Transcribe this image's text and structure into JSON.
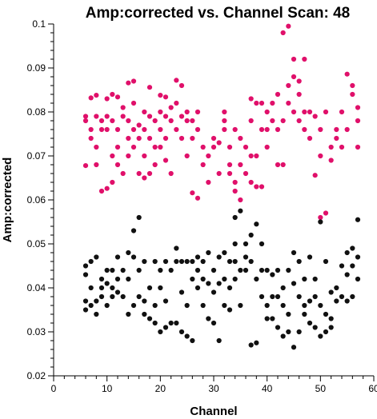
{
  "chart_data": {
    "type": "scatter",
    "title": "Amp:corrected vs. Channel Scan: 48",
    "xlabel": "Channel",
    "ylabel": "Amp:corrected",
    "xlim": [
      0,
      60
    ],
    "ylim": [
      0.02,
      0.1
    ],
    "xticks": [
      "0",
      "10",
      "20",
      "30",
      "40",
      "50",
      "60"
    ],
    "yticks": [
      "0.02",
      "0.03",
      "0.04",
      "0.05",
      "0.06",
      "0.07",
      "0.08",
      "0.09",
      "0.1"
    ],
    "grid": false,
    "legend": "none",
    "series": [
      {
        "color": "#e0106a",
        "points": [
          [
            6,
            0.079
          ],
          [
            6,
            0.078
          ],
          [
            6,
            0.0678
          ],
          [
            7,
            0.076
          ],
          [
            7,
            0.0832
          ],
          [
            7,
            0.074
          ],
          [
            8,
            0.0838
          ],
          [
            8,
            0.079
          ],
          [
            8,
            0.072
          ],
          [
            8,
            0.068
          ],
          [
            9,
            0.078
          ],
          [
            9,
            0.076
          ],
          [
            9,
            0.062
          ],
          [
            10,
            0.083
          ],
          [
            10,
            0.079
          ],
          [
            10,
            0.076
          ],
          [
            10,
            0.0626
          ],
          [
            11,
            0.084
          ],
          [
            11,
            0.078
          ],
          [
            11,
            0.07
          ],
          [
            11,
            0.064
          ],
          [
            12,
            0.0834
          ],
          [
            12,
            0.076
          ],
          [
            12,
            0.072
          ],
          [
            12,
            0.068
          ],
          [
            13,
            0.081
          ],
          [
            13,
            0.079
          ],
          [
            13,
            0.066
          ],
          [
            14,
            0.0866
          ],
          [
            14,
            0.078
          ],
          [
            14,
            0.074
          ],
          [
            14,
            0.07
          ],
          [
            15,
            0.087
          ],
          [
            15,
            0.082
          ],
          [
            15,
            0.076
          ],
          [
            15,
            0.072
          ],
          [
            16,
            0.077
          ],
          [
            16,
            0.074
          ],
          [
            16,
            0.066
          ],
          [
            17,
            0.08
          ],
          [
            17,
            0.076
          ],
          [
            17,
            0.07
          ],
          [
            17,
            0.065
          ],
          [
            18,
            0.0856
          ],
          [
            18,
            0.079
          ],
          [
            18,
            0.074
          ],
          [
            18,
            0.066
          ],
          [
            19,
            0.078
          ],
          [
            19,
            0.072
          ],
          [
            19,
            0.068
          ],
          [
            20,
            0.0838
          ],
          [
            20,
            0.08
          ],
          [
            20,
            0.076
          ],
          [
            20,
            0.072
          ],
          [
            21,
            0.0834
          ],
          [
            21,
            0.079
          ],
          [
            21,
            0.074
          ],
          [
            21,
            0.069
          ],
          [
            22,
            0.081
          ],
          [
            22,
            0.078
          ],
          [
            22,
            0.066
          ],
          [
            23,
            0.0872
          ],
          [
            23,
            0.082
          ],
          [
            23,
            0.076
          ],
          [
            24,
            0.086
          ],
          [
            24,
            0.079
          ],
          [
            24,
            0.074
          ],
          [
            25,
            0.08
          ],
          [
            25,
            0.078
          ],
          [
            25,
            0.07
          ],
          [
            26,
            0.078
          ],
          [
            26,
            0.074
          ],
          [
            26,
            0.0616
          ],
          [
            27,
            0.08
          ],
          [
            27,
            0.076
          ],
          [
            27,
            0.0604
          ],
          [
            28,
            0.072
          ],
          [
            28,
            0.068
          ],
          [
            29,
            0.07
          ],
          [
            29,
            0.064
          ],
          [
            30,
            0.074
          ],
          [
            30,
            0.072
          ],
          [
            31,
            0.073
          ],
          [
            31,
            0.066
          ],
          [
            32,
            0.08
          ],
          [
            32,
            0.078
          ],
          [
            32,
            0.076
          ],
          [
            33,
            0.072
          ],
          [
            33,
            0.068
          ],
          [
            33,
            0.066
          ],
          [
            34,
            0.076
          ],
          [
            34,
            0.064
          ],
          [
            34,
            0.062
          ],
          [
            35,
            0.074
          ],
          [
            35,
            0.068
          ],
          [
            35,
            0.06
          ],
          [
            36,
            0.072
          ],
          [
            36,
            0.066
          ],
          [
            37,
            0.083
          ],
          [
            37,
            0.078
          ],
          [
            37,
            0.07
          ],
          [
            37,
            0.064
          ],
          [
            38,
            0.082
          ],
          [
            38,
            0.07
          ],
          [
            38,
            0.063
          ],
          [
            39,
            0.082
          ],
          [
            39,
            0.076
          ],
          [
            39,
            0.063
          ],
          [
            40,
            0.08
          ],
          [
            40,
            0.076
          ],
          [
            40,
            0.072
          ],
          [
            41,
            0.082
          ],
          [
            41,
            0.078
          ],
          [
            42,
            0.084
          ],
          [
            42,
            0.076
          ],
          [
            42,
            0.068
          ],
          [
            43,
            0.098
          ],
          [
            43,
            0.078
          ],
          [
            43,
            0.068
          ],
          [
            44,
            0.0995
          ],
          [
            44,
            0.086
          ],
          [
            44,
            0.082
          ],
          [
            45,
            0.092
          ],
          [
            45,
            0.088
          ],
          [
            45,
            0.08
          ],
          [
            46,
            0.087
          ],
          [
            46,
            0.084
          ],
          [
            46,
            0.078
          ],
          [
            47,
            0.092
          ],
          [
            47,
            0.08
          ],
          [
            47,
            0.076
          ],
          [
            48,
            0.08
          ],
          [
            48,
            0.074
          ],
          [
            49,
            0.079
          ],
          [
            49,
            0.0656
          ],
          [
            50,
            0.076
          ],
          [
            50,
            0.07
          ],
          [
            50,
            0.056
          ],
          [
            51,
            0.08
          ],
          [
            51,
            0.057
          ],
          [
            52,
            0.072
          ],
          [
            52,
            0.069
          ],
          [
            53,
            0.076
          ],
          [
            53,
            0.074
          ],
          [
            54,
            0.08
          ],
          [
            54,
            0.072
          ],
          [
            55,
            0.0886
          ],
          [
            55,
            0.076
          ],
          [
            56,
            0.086
          ],
          [
            56,
            0.084
          ],
          [
            57,
            0.081
          ],
          [
            57,
            0.078
          ],
          [
            57,
            0.072
          ]
        ]
      },
      {
        "color": "#111111",
        "points": [
          [
            6,
            0.045
          ],
          [
            6,
            0.043
          ],
          [
            6,
            0.037
          ],
          [
            6,
            0.035
          ],
          [
            7,
            0.046
          ],
          [
            7,
            0.04
          ],
          [
            7,
            0.036
          ],
          [
            8,
            0.047
          ],
          [
            8,
            0.037
          ],
          [
            8,
            0.034
          ],
          [
            9,
            0.042
          ],
          [
            9,
            0.04
          ],
          [
            9,
            0.038
          ],
          [
            10,
            0.044
          ],
          [
            10,
            0.041
          ],
          [
            10,
            0.036
          ],
          [
            11,
            0.044
          ],
          [
            11,
            0.04
          ],
          [
            11,
            0.038
          ],
          [
            12,
            0.047
          ],
          [
            12,
            0.042
          ],
          [
            12,
            0.039
          ],
          [
            13,
            0.044
          ],
          [
            13,
            0.038
          ],
          [
            14,
            0.048
          ],
          [
            14,
            0.042
          ],
          [
            14,
            0.034
          ],
          [
            15,
            0.053
          ],
          [
            15,
            0.047
          ],
          [
            15,
            0.036
          ],
          [
            16,
            0.056
          ],
          [
            16,
            0.044
          ],
          [
            16,
            0.038
          ],
          [
            17,
            0.046
          ],
          [
            17,
            0.037
          ],
          [
            17,
            0.034
          ],
          [
            18,
            0.04
          ],
          [
            18,
            0.033
          ],
          [
            19,
            0.046
          ],
          [
            19,
            0.036
          ],
          [
            19,
            0.032
          ],
          [
            20,
            0.044
          ],
          [
            20,
            0.04
          ],
          [
            20,
            0.03
          ],
          [
            21,
            0.046
          ],
          [
            21,
            0.037
          ],
          [
            21,
            0.031
          ],
          [
            22,
            0.044
          ],
          [
            22,
            0.032
          ],
          [
            23,
            0.049
          ],
          [
            23,
            0.046
          ],
          [
            23,
            0.032
          ],
          [
            24,
            0.046
          ],
          [
            24,
            0.039
          ],
          [
            24,
            0.03
          ],
          [
            25,
            0.046
          ],
          [
            25,
            0.036
          ],
          [
            25,
            0.029
          ],
          [
            26,
            0.046
          ],
          [
            26,
            0.042
          ],
          [
            26,
            0.028
          ],
          [
            27,
            0.047
          ],
          [
            27,
            0.044
          ],
          [
            27,
            0.04
          ],
          [
            28,
            0.046
          ],
          [
            28,
            0.042
          ],
          [
            28,
            0.036
          ],
          [
            29,
            0.048
          ],
          [
            29,
            0.041
          ],
          [
            29,
            0.033
          ],
          [
            30,
            0.044
          ],
          [
            30,
            0.039
          ],
          [
            30,
            0.032
          ],
          [
            31,
            0.047
          ],
          [
            31,
            0.041
          ],
          [
            31,
            0.028
          ],
          [
            32,
            0.048
          ],
          [
            32,
            0.042
          ],
          [
            32,
            0.036
          ],
          [
            33,
            0.046
          ],
          [
            33,
            0.04
          ],
          [
            33,
            0.035
          ],
          [
            34,
            0.05
          ],
          [
            34,
            0.046
          ],
          [
            34,
            0.042
          ],
          [
            34,
            0.056
          ],
          [
            35,
            0.0575
          ],
          [
            35,
            0.044
          ],
          [
            35,
            0.036
          ],
          [
            36,
            0.05
          ],
          [
            36,
            0.047
          ],
          [
            36,
            0.044
          ],
          [
            37,
            0.052
          ],
          [
            37,
            0.046
          ],
          [
            37,
            0.027
          ],
          [
            38,
            0.0545
          ],
          [
            38,
            0.042
          ],
          [
            38,
            0.0275
          ],
          [
            39,
            0.05
          ],
          [
            39,
            0.044
          ],
          [
            39,
            0.038
          ],
          [
            40,
            0.044
          ],
          [
            40,
            0.036
          ],
          [
            40,
            0.033
          ],
          [
            41,
            0.043
          ],
          [
            41,
            0.038
          ],
          [
            41,
            0.033
          ],
          [
            42,
            0.044
          ],
          [
            42,
            0.038
          ],
          [
            42,
            0.031
          ],
          [
            43,
            0.04
          ],
          [
            43,
            0.036
          ],
          [
            43,
            0.029
          ],
          [
            44,
            0.044
          ],
          [
            44,
            0.034
          ],
          [
            44,
            0.03
          ],
          [
            45,
            0.048
          ],
          [
            45,
            0.041
          ],
          [
            45,
            0.0265
          ],
          [
            46,
            0.046
          ],
          [
            46,
            0.038
          ],
          [
            46,
            0.03
          ],
          [
            47,
            0.042
          ],
          [
            47,
            0.036
          ],
          [
            47,
            0.034
          ],
          [
            48,
            0.047
          ],
          [
            48,
            0.037
          ],
          [
            48,
            0.032
          ],
          [
            49,
            0.042
          ],
          [
            49,
            0.038
          ],
          [
            49,
            0.031
          ],
          [
            50,
            0.055
          ],
          [
            50,
            0.036
          ],
          [
            50,
            0.029
          ],
          [
            51,
            0.046
          ],
          [
            51,
            0.034
          ],
          [
            51,
            0.03
          ],
          [
            52,
            0.039
          ],
          [
            52,
            0.033
          ],
          [
            52,
            0.031
          ],
          [
            53,
            0.04
          ],
          [
            53,
            0.037
          ],
          [
            54,
            0.045
          ],
          [
            54,
            0.038
          ],
          [
            55,
            0.048
          ],
          [
            55,
            0.043
          ],
          [
            55,
            0.037
          ],
          [
            56,
            0.049
          ],
          [
            56,
            0.045
          ],
          [
            56,
            0.038
          ],
          [
            57,
            0.0555
          ],
          [
            57,
            0.047
          ],
          [
            57,
            0.042
          ]
        ]
      }
    ]
  }
}
